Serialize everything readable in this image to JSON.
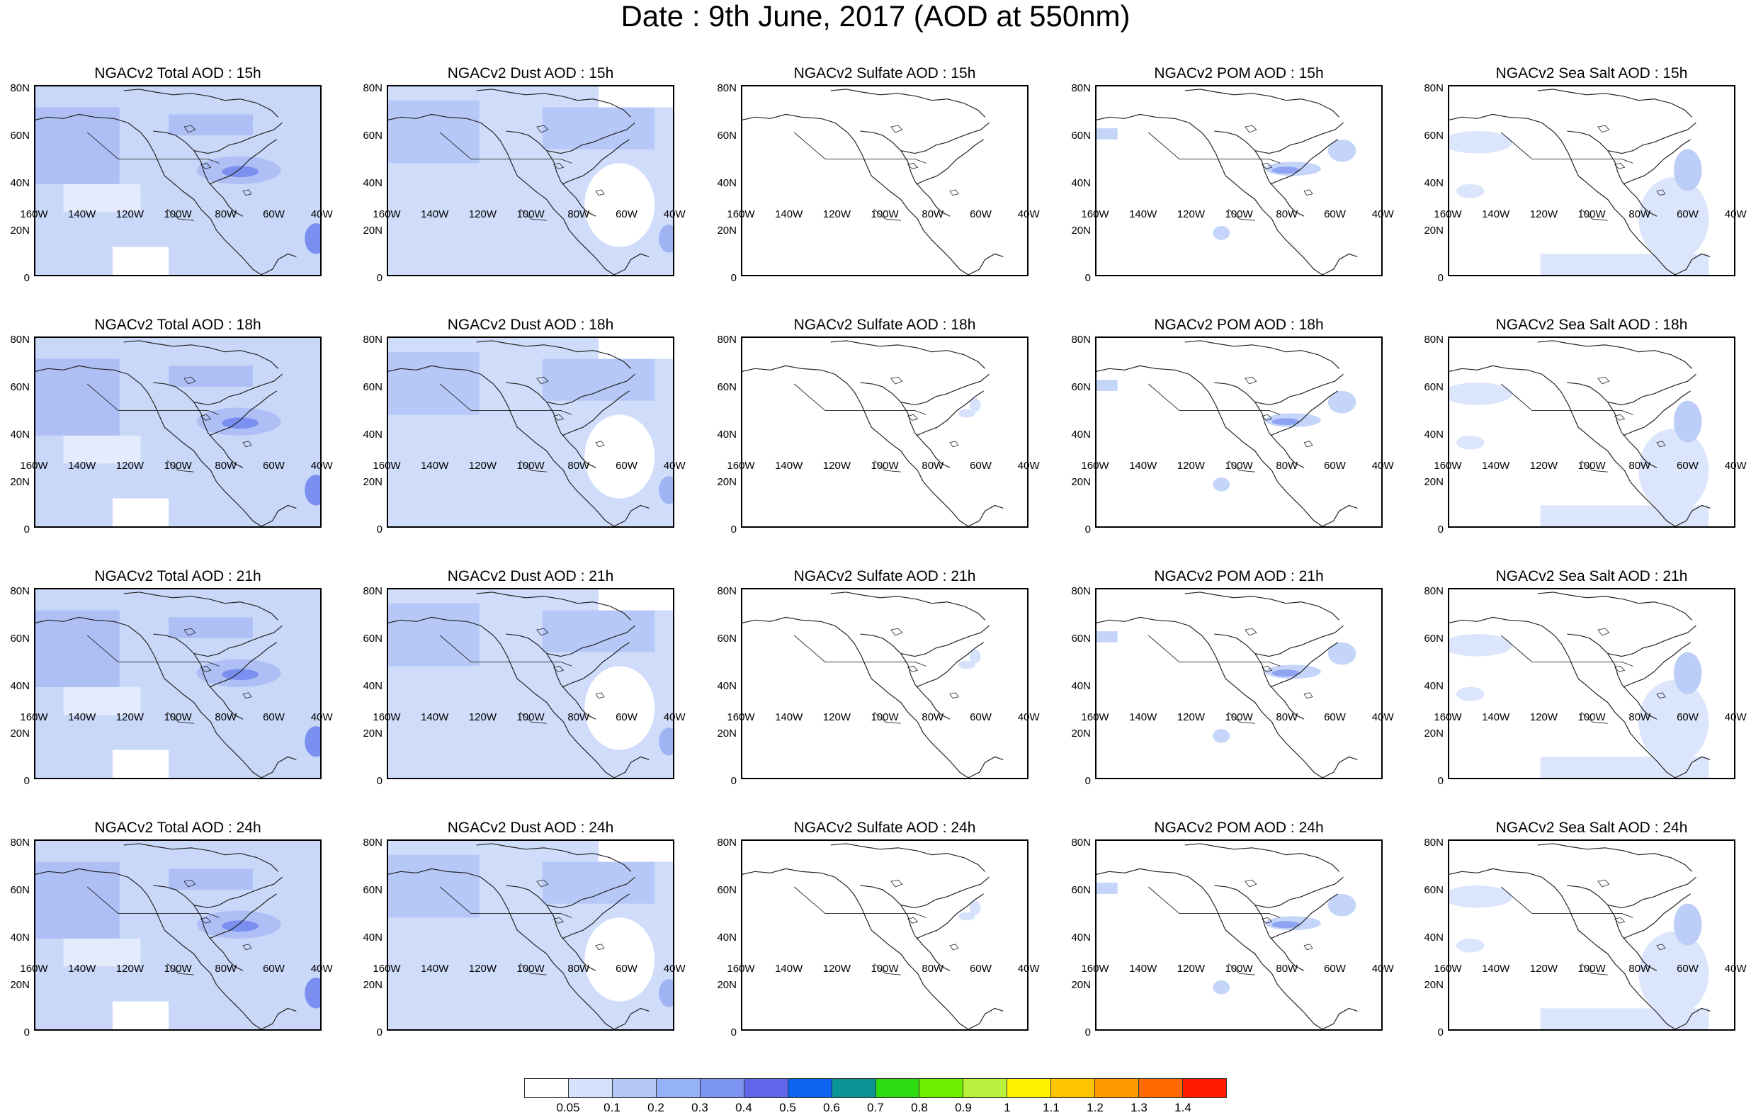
{
  "title": "Date : 9th June, 2017 (AOD at 550nm)",
  "lat_labels": [
    "80N",
    "60N",
    "40N",
    "20N",
    "0"
  ],
  "lon_labels": [
    "160W",
    "140W",
    "120W",
    "100W",
    "80W",
    "60W",
    "40W"
  ],
  "rows": [
    [
      "NGACv2 Total AOD : 15h",
      "NGACv2 Dust AOD : 15h",
      "NGACv2 Sulfate AOD : 15h",
      "NGACv2 POM AOD : 15h",
      "NGACv2 Sea Salt AOD : 15h"
    ],
    [
      "NGACv2 Total AOD : 18h",
      "NGACv2 Dust AOD : 18h",
      "NGACv2 Sulfate AOD : 18h",
      "NGACv2 POM AOD : 18h",
      "NGACv2 Sea Salt AOD : 18h"
    ],
    [
      "NGACv2 Total AOD : 21h",
      "NGACv2 Dust AOD : 21h",
      "NGACv2 Sulfate AOD : 21h",
      "NGACv2 POM AOD : 21h",
      "NGACv2 Sea Salt AOD : 21h"
    ],
    [
      "NGACv2 Total AOD : 24h",
      "NGACv2 Dust AOD : 24h",
      "NGACv2 Sulfate AOD : 24h",
      "NGACv2 POM AOD : 24h",
      "NGACv2 Sea Salt  AOD : 24h"
    ]
  ],
  "colorbar": {
    "labels": [
      "0.05",
      "0.1",
      "0.2",
      "0.3",
      "0.4",
      "0.5",
      "0.6",
      "0.7",
      "0.8",
      "0.9",
      "1",
      "1.1",
      "1.2",
      "1.3",
      "1.4"
    ],
    "colors": [
      "#ffffff",
      "#d6e2fb",
      "#b5c9f8",
      "#95b2f6",
      "#7d95f2",
      "#6266ec",
      "#0a64f0",
      "#0a9494",
      "#2edc12",
      "#6ef000",
      "#b8f23e",
      "#fff200",
      "#ffc400",
      "#ff9a00",
      "#ff6a00",
      "#ff1a00"
    ]
  },
  "styles": {
    "total": {
      "base": "#c9d8f9",
      "mid": "#aebff6",
      "high": "#7a8ff0"
    },
    "dust": {
      "base": "#cfdcfa",
      "mid": "#b6c8f7",
      "high": "#9fb3f3"
    },
    "sulfate": {
      "base": "#ffffff",
      "mid": "#d6e2fb",
      "high": "#b5c9f8"
    },
    "pom": {
      "base": "#ffffff",
      "mid": "#c5d5f9",
      "high": "#8ea4f3"
    },
    "seasalt": {
      "base": "#ffffff",
      "mid": "#dbe5fb",
      "high": "#bccdf8"
    }
  }
}
